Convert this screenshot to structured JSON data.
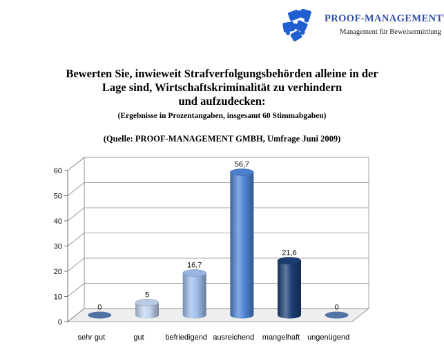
{
  "header": {
    "brand": "PROOF-MANAGEMENT",
    "registered": "®",
    "tagline": "Management für Beweisermittlung",
    "logo_icon": "puzzle-pieces-icon",
    "logo_color": "#1f5fd0"
  },
  "question": {
    "line1": "Bewerten Sie, inwieweit Strafverfolgungsbehörden alleine in der",
    "line2": "Lage sind, Wirtschaftskriminalität zu verhindern",
    "line3": "und aufzudecken:",
    "subtitle": "(Ergebnisse in Prozentangaben, insgesamt 60 Stimmabgaben)",
    "source": "(Quelle: PROOF-MANAGEMENT GMBH, Umfrage Juni 2009)"
  },
  "chart_data": {
    "type": "bar",
    "title": "",
    "xlabel": "",
    "ylabel": "",
    "categories": [
      "sehr gut",
      "gut",
      "befriedigend",
      "ausreichend",
      "mangelhaft",
      "ungenügend"
    ],
    "values": [
      0,
      5,
      16.7,
      56.7,
      21.6,
      0
    ],
    "data_labels": [
      "0",
      "5",
      "16,7",
      "56,7",
      "21,6",
      "0"
    ],
    "yticks": [
      "0",
      "10",
      "20",
      "30",
      "40",
      "50",
      "60"
    ],
    "ylim": [
      0,
      60
    ],
    "grid": true,
    "style": "3d-cylinder",
    "colors": [
      "#5a7fb6",
      "#c2d5f0",
      "#9fbfec",
      "#4f86d8",
      "#1c3f75",
      "#5a7fb6"
    ]
  }
}
